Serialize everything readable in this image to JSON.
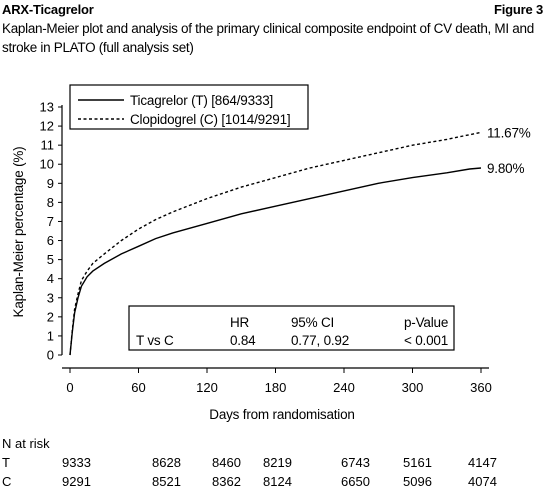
{
  "header": {
    "drug": "ARX-Ticagrelor",
    "figure": "Figure 3"
  },
  "caption": "Kaplan-Meier plot and analysis of the primary clinical composite endpoint of CV death, MI and stroke in PLATO (full analysis set)",
  "chart_data": {
    "type": "line",
    "xlabel": "Days from randomisation",
    "ylabel": "Kaplan-Meier percentage (%)",
    "xlim": [
      0,
      360
    ],
    "ylim": [
      0,
      13
    ],
    "xticks": [
      0,
      60,
      120,
      180,
      240,
      300,
      360
    ],
    "yticks": [
      0,
      1,
      2,
      3,
      4,
      5,
      6,
      7,
      8,
      9,
      10,
      11,
      12,
      13
    ],
    "grid": false,
    "legend_position": "top-left",
    "series": [
      {
        "name": "Ticagrelor (T) [864/9333]",
        "style": "solid",
        "x": [
          0,
          2,
          4,
          7,
          10,
          15,
          20,
          30,
          45,
          60,
          75,
          90,
          120,
          150,
          180,
          210,
          240,
          270,
          300,
          330,
          350,
          360
        ],
        "y": [
          0,
          1.2,
          2.2,
          3.0,
          3.6,
          4.1,
          4.4,
          4.8,
          5.3,
          5.7,
          6.1,
          6.4,
          6.9,
          7.4,
          7.8,
          8.2,
          8.6,
          9.0,
          9.3,
          9.55,
          9.75,
          9.8
        ],
        "end_label": "9.80%"
      },
      {
        "name": "Clopidogrel (C) [1014/9291]",
        "style": "dashed",
        "x": [
          0,
          2,
          4,
          7,
          10,
          15,
          20,
          30,
          45,
          60,
          75,
          90,
          120,
          150,
          180,
          210,
          240,
          270,
          300,
          330,
          350,
          360
        ],
        "y": [
          0,
          1.3,
          2.4,
          3.2,
          3.9,
          4.4,
          4.8,
          5.3,
          6.0,
          6.6,
          7.1,
          7.5,
          8.2,
          8.8,
          9.3,
          9.8,
          10.2,
          10.6,
          11.0,
          11.3,
          11.55,
          11.67
        ],
        "end_label": "11.67%"
      }
    ],
    "stats_table": {
      "headers": [
        "",
        "HR",
        "95% CI",
        "p-Value"
      ],
      "row": [
        "T vs C",
        "0.84",
        "0.77, 0.92",
        "< 0.001"
      ]
    },
    "at_risk": {
      "title": "N at risk",
      "rows": [
        {
          "label": "T",
          "values": [
            "9333",
            "8628",
            "8460",
            "8219",
            "6743",
            "5161",
            "4147"
          ]
        },
        {
          "label": "C",
          "values": [
            "9291",
            "8521",
            "8362",
            "8124",
            "6650",
            "5096",
            "4074"
          ]
        }
      ]
    }
  }
}
